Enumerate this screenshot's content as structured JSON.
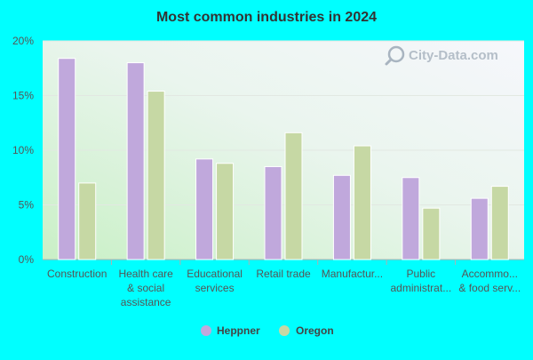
{
  "chart_data": {
    "type": "bar",
    "title": "Most common industries in 2024",
    "categories": [
      [
        "Construction"
      ],
      [
        "Health care",
        "& social",
        "assistance"
      ],
      [
        "Educational",
        "services"
      ],
      [
        "Retail trade"
      ],
      [
        "Manufactur..."
      ],
      [
        "Public",
        "administrat..."
      ],
      [
        "Accommo...",
        "& food serv..."
      ]
    ],
    "series": [
      {
        "name": "Heppner",
        "color": "#c0a8dc",
        "values": [
          18.4,
          18.0,
          9.2,
          8.5,
          7.7,
          7.5,
          5.6
        ]
      },
      {
        "name": "Oregon",
        "color": "#c6d8a4",
        "values": [
          7.0,
          15.4,
          8.8,
          11.6,
          10.4,
          4.7,
          6.7
        ]
      }
    ],
    "yticks": [
      "0%",
      "5%",
      "10%",
      "15%",
      "20%"
    ],
    "ylim": [
      0,
      20
    ],
    "legend_position": "bottom",
    "grid": true
  },
  "watermark": "City-Data.com"
}
